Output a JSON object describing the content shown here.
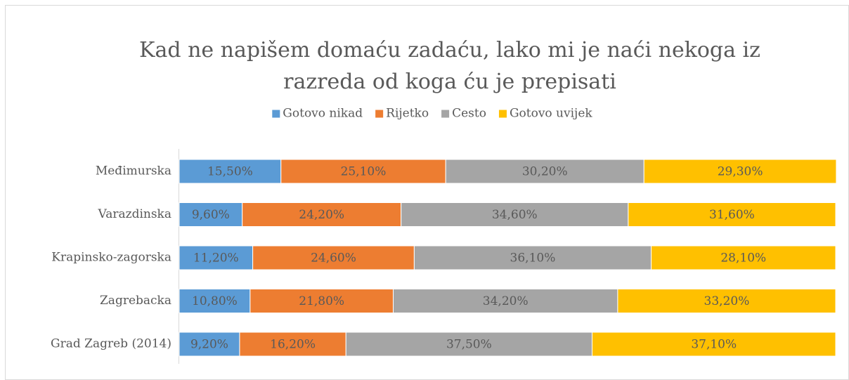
{
  "chart_data": {
    "type": "bar",
    "stacked": true,
    "title": [
      "Kad ne napišem domaću zadaću, lako mi je naći nekoga iz",
      "razreda od koga ću je prepisati"
    ],
    "categories": [
      "Međimurska",
      "Varazdinska",
      "Krapinsko-zagorska",
      "Zagrebacka",
      "Grad Zagreb (2014)"
    ],
    "xlim": [
      0,
      100
    ],
    "legend": "top",
    "series": [
      {
        "name": "Gotovo nikad",
        "color": "#5b9bd5",
        "values": [
          15.5,
          9.6,
          11.2,
          10.8,
          9.2
        ],
        "value_labels": [
          "15,50%",
          "9,60%",
          "11,20%",
          "10,80%",
          "9,20%"
        ]
      },
      {
        "name": "Rijetko",
        "color": "#ed7d31",
        "values": [
          25.1,
          24.2,
          24.6,
          21.8,
          16.2
        ],
        "value_labels": [
          "25,10%",
          "24,20%",
          "24,60%",
          "21,80%",
          "16,20%"
        ]
      },
      {
        "name": "Cesto",
        "color": "#a5a5a5",
        "values": [
          30.2,
          34.6,
          36.1,
          34.2,
          37.5
        ],
        "value_labels": [
          "30,20%",
          "34,60%",
          "36,10%",
          "34,20%",
          "37,50%"
        ]
      },
      {
        "name": "Gotovo uvijek",
        "color": "#ffc000",
        "values": [
          29.3,
          31.6,
          28.1,
          33.2,
          37.1
        ],
        "value_labels": [
          "29,30%",
          "31,60%",
          "28,10%",
          "33,20%",
          "37,10%"
        ]
      }
    ]
  }
}
